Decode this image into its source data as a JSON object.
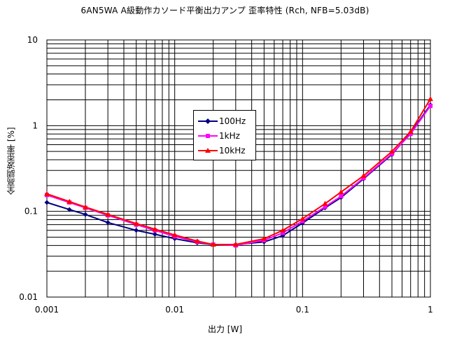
{
  "chart_data": {
    "type": "line",
    "title": "6AN5WA A級動作カソード平衡出力アンプ 歪率特性 (Rch, NFB=5.03dB)",
    "xlabel": "出力 [W]",
    "ylabel": "全高調波歪率 [%]",
    "x_scale": "log",
    "y_scale": "log",
    "xlim": [
      0.001,
      1
    ],
    "ylim": [
      0.01,
      10
    ],
    "x_ticks": [
      "0.001",
      "0.01",
      "0.1",
      "1"
    ],
    "y_ticks": [
      "0.01",
      "0.1",
      "1",
      "10"
    ],
    "grid": true,
    "legend_position": "center",
    "series": [
      {
        "name": "100Hz",
        "color": "#000080",
        "marker": "diamond",
        "points": [
          [
            0.001,
            0.127
          ],
          [
            0.0015,
            0.105
          ],
          [
            0.002,
            0.092
          ],
          [
            0.003,
            0.074
          ],
          [
            0.005,
            0.06
          ],
          [
            0.007,
            0.054
          ],
          [
            0.01,
            0.048
          ],
          [
            0.015,
            0.043
          ],
          [
            0.02,
            0.041
          ],
          [
            0.03,
            0.041
          ],
          [
            0.05,
            0.044
          ],
          [
            0.07,
            0.052
          ],
          [
            0.1,
            0.073
          ],
          [
            0.15,
            0.11
          ],
          [
            0.2,
            0.145
          ],
          [
            0.3,
            0.24
          ],
          [
            0.5,
            0.46
          ],
          [
            0.7,
            0.82
          ],
          [
            1.0,
            1.75
          ]
        ]
      },
      {
        "name": "1kHz",
        "color": "#ff00ff",
        "marker": "square",
        "points": [
          [
            0.001,
            0.155
          ],
          [
            0.0015,
            0.127
          ],
          [
            0.002,
            0.11
          ],
          [
            0.003,
            0.09
          ],
          [
            0.005,
            0.07
          ],
          [
            0.007,
            0.06
          ],
          [
            0.01,
            0.051
          ],
          [
            0.015,
            0.044
          ],
          [
            0.02,
            0.041
          ],
          [
            0.03,
            0.04
          ],
          [
            0.05,
            0.046
          ],
          [
            0.07,
            0.056
          ],
          [
            0.1,
            0.077
          ],
          [
            0.15,
            0.113
          ],
          [
            0.2,
            0.15
          ],
          [
            0.3,
            0.245
          ],
          [
            0.5,
            0.47
          ],
          [
            0.7,
            0.8
          ],
          [
            1.0,
            1.7
          ]
        ]
      },
      {
        "name": "10kHz",
        "color": "#ff0000",
        "marker": "triangle",
        "points": [
          [
            0.001,
            0.16
          ],
          [
            0.0015,
            0.13
          ],
          [
            0.002,
            0.112
          ],
          [
            0.003,
            0.092
          ],
          [
            0.005,
            0.072
          ],
          [
            0.007,
            0.062
          ],
          [
            0.01,
            0.053
          ],
          [
            0.015,
            0.045
          ],
          [
            0.02,
            0.041
          ],
          [
            0.03,
            0.041
          ],
          [
            0.05,
            0.048
          ],
          [
            0.07,
            0.06
          ],
          [
            0.1,
            0.082
          ],
          [
            0.15,
            0.123
          ],
          [
            0.2,
            0.168
          ],
          [
            0.3,
            0.26
          ],
          [
            0.5,
            0.5
          ],
          [
            0.7,
            0.85
          ],
          [
            1.0,
            2.05
          ]
        ]
      }
    ]
  }
}
